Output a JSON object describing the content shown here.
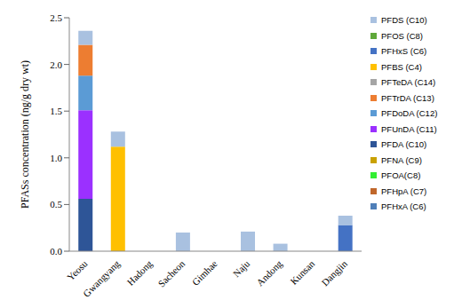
{
  "chart_data": {
    "type": "bar",
    "stacked": true,
    "y_label": "PFASs concentration (ng/g dry wt)",
    "categories": [
      "Yeosu",
      "Gwangyang",
      "Hadong",
      "Sacheon",
      "Gimhae",
      "Naju",
      "Andong",
      "Kunsan",
      "Dangjin"
    ],
    "ylim": [
      0,
      2.5
    ],
    "yticks": [
      {
        "value": 0,
        "label": "0.0"
      },
      {
        "value": 0.5,
        "label": "0.5"
      },
      {
        "value": 1,
        "label": "1.0"
      },
      {
        "value": 1.5,
        "label": "1.5"
      },
      {
        "value": 2,
        "label": "2.0"
      },
      {
        "value": 2.5,
        "label": "2.5"
      }
    ],
    "grid": false,
    "legend": "right",
    "series": [
      {
        "name": "PFDS (C10)",
        "color": "#a9c1e0",
        "values": [
          0.15,
          0.16,
          0,
          0.2,
          0,
          0.21,
          0.08,
          0,
          0.1
        ]
      },
      {
        "name": "PFOS (C8)",
        "color": "#5fa83a",
        "values": [
          0,
          0,
          0,
          0,
          0,
          0,
          0,
          0,
          0
        ]
      },
      {
        "name": "PFHxS (C6)",
        "color": "#4472c4",
        "values": [
          0,
          0,
          0,
          0,
          0,
          0,
          0,
          0,
          0.28
        ]
      },
      {
        "name": "PFBS (C4)",
        "color": "#ffc000",
        "values": [
          0,
          1.12,
          0,
          0,
          0,
          0,
          0,
          0,
          0
        ]
      },
      {
        "name": "PFTeDA (C14)",
        "color": "#a5a5a5",
        "values": [
          0,
          0,
          0,
          0,
          0,
          0,
          0,
          0,
          0
        ]
      },
      {
        "name": "PFTrDA (C13)",
        "color": "#ed7d31",
        "values": [
          0.33,
          0,
          0,
          0,
          0,
          0,
          0,
          0,
          0
        ]
      },
      {
        "name": "PFDoDA (C12)",
        "color": "#5b9bd5",
        "values": [
          0.37,
          0,
          0,
          0,
          0,
          0,
          0,
          0,
          0
        ]
      },
      {
        "name": "PFUnDA (C11)",
        "color": "#9b30ff",
        "values": [
          0.95,
          0,
          0,
          0,
          0,
          0,
          0,
          0,
          0
        ]
      },
      {
        "name": "PFDA (C10)",
        "color": "#2e5597",
        "values": [
          0.56,
          0,
          0,
          0,
          0,
          0,
          0,
          0,
          0
        ]
      },
      {
        "name": "PFNA (C9)",
        "color": "#c9a100",
        "values": [
          0,
          0,
          0,
          0,
          0,
          0,
          0,
          0,
          0
        ]
      },
      {
        "name": "PFOA(C8)",
        "color": "#33ee33",
        "values": [
          0,
          0,
          0,
          0,
          0,
          0,
          0,
          0,
          0
        ]
      },
      {
        "name": "PFHpA (C7)",
        "color": "#c0672b",
        "values": [
          0,
          0,
          0,
          0,
          0,
          0,
          0,
          0,
          0
        ]
      },
      {
        "name": "PFHxA (C6)",
        "color": "#4f7fb8",
        "values": [
          0,
          0,
          0,
          0,
          0,
          0,
          0,
          0,
          0
        ]
      }
    ]
  }
}
